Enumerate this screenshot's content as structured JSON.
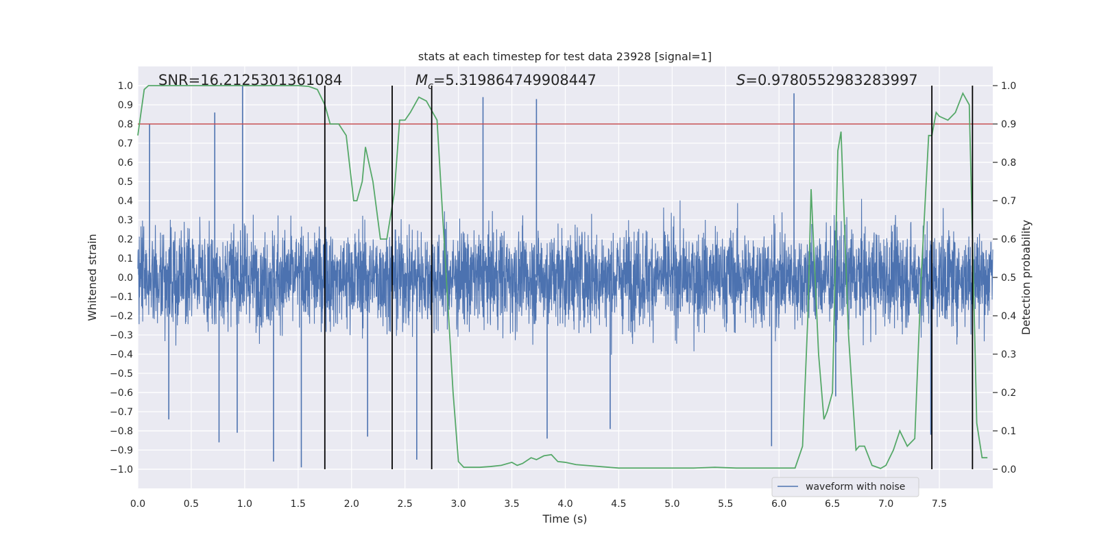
{
  "chart_data": {
    "type": "line",
    "title": "stats at each timestep for test data 23928 [signal=1]",
    "xlabel": "Time (s)",
    "ylabel": "Whitened strain",
    "y2label": "Detection probability",
    "xlim": [
      0.0,
      8.0
    ],
    "ylim": [
      -1.1,
      1.1
    ],
    "y2lim": [
      -0.05,
      1.05
    ],
    "x_ticks": [
      "0.0",
      "0.5",
      "1.0",
      "1.5",
      "2.0",
      "2.5",
      "3.0",
      "3.5",
      "4.0",
      "4.5",
      "5.0",
      "5.5",
      "6.0",
      "6.5",
      "7.0",
      "7.5"
    ],
    "y_ticks": [
      "1.0",
      "0.9",
      "0.8",
      "0.7",
      "0.6",
      "0.5",
      "0.4",
      "0.3",
      "0.2",
      "0.1",
      "0.0",
      "−0.1",
      "−0.2",
      "−0.3",
      "−0.4",
      "−0.5",
      "−0.6",
      "−0.7",
      "−0.8",
      "−0.9",
      "−1.0"
    ],
    "y2_ticks": [
      "1.0",
      "0.9",
      "0.8",
      "0.7",
      "0.6",
      "0.5",
      "0.4",
      "0.3",
      "0.2",
      "0.1",
      "0.0"
    ],
    "annotations": {
      "snr": "SNR=16.2125301361084",
      "mc_symbol": "M",
      "mc_sub": "c",
      "mc_value": "=5.319864749908447",
      "s_symbol": "S",
      "s_value": "=0.9780552983283997"
    },
    "legend": {
      "label": "waveform with noise",
      "location": "lower-right"
    },
    "threshold": {
      "value": 0.9,
      "axis": "right",
      "color": "#c44e52"
    },
    "vertical_lines": [
      1.75,
      2.38,
      2.75,
      7.43,
      7.81
    ],
    "series": [
      {
        "name": "waveform with noise",
        "axis": "left",
        "color": "#4c72b0",
        "kind": "dense-waveform",
        "x_range": [
          0.0,
          8.0
        ],
        "typical_amplitude": 0.4,
        "peak_amplitude": 1.0,
        "spikes": [
          {
            "x": 0.98,
            "y": 1.0
          },
          {
            "x": 0.72,
            "y": 0.86
          },
          {
            "x": 1.53,
            "y": -0.99
          },
          {
            "x": 1.27,
            "y": -0.96
          },
          {
            "x": 2.61,
            "y": -0.95
          },
          {
            "x": 6.14,
            "y": 0.96
          },
          {
            "x": 3.23,
            "y": 0.94
          },
          {
            "x": 3.73,
            "y": 0.93
          },
          {
            "x": 0.11,
            "y": 0.8
          },
          {
            "x": 0.76,
            "y": -0.86
          },
          {
            "x": 0.93,
            "y": -0.81
          },
          {
            "x": 0.29,
            "y": -0.74
          },
          {
            "x": 2.15,
            "y": -0.83
          },
          {
            "x": 3.83,
            "y": -0.84
          },
          {
            "x": 4.42,
            "y": -0.79
          },
          {
            "x": 5.93,
            "y": -0.88
          },
          {
            "x": 7.42,
            "y": -0.82
          },
          {
            "x": 6.53,
            "y": -0.62
          }
        ]
      },
      {
        "name": "Detection probability",
        "axis": "right",
        "color": "#55a868",
        "x": [
          0.0,
          0.06,
          0.1,
          0.2,
          0.4,
          0.6,
          0.8,
          1.0,
          1.2,
          1.4,
          1.5,
          1.6,
          1.68,
          1.75,
          1.8,
          1.88,
          1.95,
          2.02,
          2.05,
          2.1,
          2.13,
          2.2,
          2.27,
          2.33,
          2.4,
          2.45,
          2.5,
          2.55,
          2.63,
          2.7,
          2.8,
          2.95,
          3.0,
          3.05,
          3.1,
          3.2,
          3.3,
          3.4,
          3.5,
          3.55,
          3.6,
          3.68,
          3.73,
          3.8,
          3.87,
          3.93,
          4.0,
          4.1,
          4.5,
          5.0,
          5.2,
          5.4,
          5.6,
          6.0,
          6.1,
          6.15,
          6.22,
          6.27,
          6.3,
          6.37,
          6.42,
          6.45,
          6.5,
          6.55,
          6.58,
          6.65,
          6.72,
          6.75,
          6.8,
          6.87,
          6.95,
          7.0,
          7.07,
          7.13,
          7.2,
          7.27,
          7.33,
          7.4,
          7.43,
          7.47,
          7.5,
          7.58,
          7.65,
          7.72,
          7.78,
          7.81,
          7.85,
          7.9,
          7.95
        ],
        "y": [
          0.87,
          0.99,
          1.0,
          1.0,
          1.0,
          1.0,
          1.0,
          1.0,
          1.0,
          1.0,
          1.0,
          0.998,
          0.99,
          0.95,
          0.9,
          0.9,
          0.87,
          0.7,
          0.7,
          0.75,
          0.84,
          0.75,
          0.6,
          0.6,
          0.72,
          0.91,
          0.91,
          0.93,
          0.97,
          0.96,
          0.91,
          0.2,
          0.02,
          0.005,
          0.005,
          0.005,
          0.007,
          0.01,
          0.018,
          0.01,
          0.015,
          0.03,
          0.025,
          0.035,
          0.038,
          0.02,
          0.018,
          0.012,
          0.003,
          0.003,
          0.003,
          0.005,
          0.003,
          0.003,
          0.003,
          0.003,
          0.06,
          0.4,
          0.73,
          0.3,
          0.13,
          0.15,
          0.2,
          0.83,
          0.88,
          0.35,
          0.05,
          0.06,
          0.06,
          0.01,
          0.002,
          0.01,
          0.05,
          0.1,
          0.06,
          0.08,
          0.5,
          0.87,
          0.87,
          0.93,
          0.92,
          0.91,
          0.93,
          0.98,
          0.95,
          0.6,
          0.12,
          0.03,
          0.03
        ]
      }
    ]
  }
}
